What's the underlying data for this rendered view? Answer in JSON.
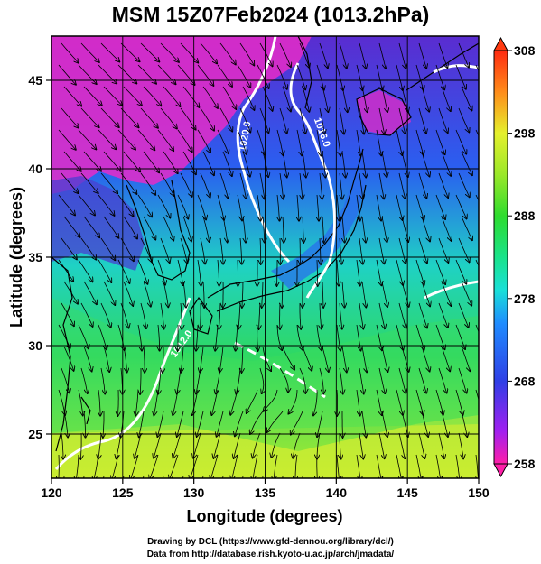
{
  "title": "MSM 15Z07Feb2024 (1013.2hPa)",
  "credits": {
    "line1": "Drawing by DCL (https://www.gfd-dennou.org/library/dcl/)",
    "line2": "Data from http://database.rish.kyoto-u.ac.jp/arch/jmadata/"
  },
  "map": {
    "x_axis": {
      "label": "Longitude (degrees)",
      "range": [
        120,
        150
      ],
      "ticks": [
        {
          "value": 120,
          "label": "120"
        },
        {
          "value": 125,
          "label": "125"
        },
        {
          "value": 130,
          "label": "130"
        },
        {
          "value": 135,
          "label": "135"
        },
        {
          "value": 140,
          "label": "140"
        },
        {
          "value": 145,
          "label": "145"
        },
        {
          "value": 150,
          "label": "150"
        }
      ]
    },
    "y_axis": {
      "label": "Latitude (degrees)",
      "range": [
        22.5,
        47.5
      ],
      "ticks": [
        {
          "value": 25,
          "label": "25"
        },
        {
          "value": 30,
          "label": "30"
        },
        {
          "value": 35,
          "label": "35"
        },
        {
          "value": 40,
          "label": "40"
        },
        {
          "value": 45,
          "label": "45"
        }
      ]
    },
    "grid": true,
    "contour_labels": [
      {
        "text": "1020.0",
        "lon": 133.8,
        "lat": 41.8,
        "angle": -80
      },
      {
        "text": "1016.0",
        "lon": 138.8,
        "lat": 42.0,
        "angle": 70
      },
      {
        "text": "1012.0",
        "lon": 129.3,
        "lat": 30.0,
        "angle": -55
      }
    ]
  },
  "colorbar": {
    "min": 258,
    "max": 308,
    "ticks": [
      {
        "value": 258,
        "label": "258"
      },
      {
        "value": 268,
        "label": "268"
      },
      {
        "value": 278,
        "label": "278"
      },
      {
        "value": 288,
        "label": "288"
      },
      {
        "value": 298,
        "label": "298"
      },
      {
        "value": 308,
        "label": "308"
      }
    ],
    "colors": [
      "#ff1fa8",
      "#a020f0",
      "#2f3fe6",
      "#1f8cff",
      "#19e0d8",
      "#19e38a",
      "#2edc2e",
      "#9be82a",
      "#e5f02c",
      "#ff8c1a",
      "#ff2a10"
    ]
  }
}
